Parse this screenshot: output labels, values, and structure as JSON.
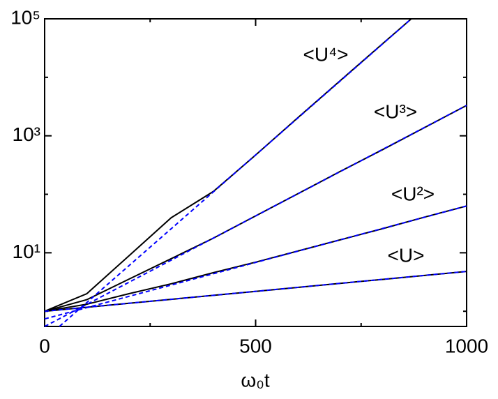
{
  "chart_data": {
    "type": "line",
    "yscale": "log",
    "xlabel": "ω₀t",
    "xlim": [
      0,
      1000
    ],
    "xticks": [
      0,
      500,
      1000
    ],
    "xticks_minor": [
      250,
      750
    ],
    "ylim": [
      0.55,
      100000
    ],
    "yticks": [
      {
        "value": 10,
        "label": "10¹"
      },
      {
        "value": 1000,
        "label": "10³"
      },
      {
        "value": 100000,
        "label": "10⁵"
      }
    ],
    "yticks_minor": [
      1,
      100,
      10000
    ],
    "series": [
      {
        "name": "<U⁴>",
        "color": "#000000",
        "x": [
          0,
          100,
          200,
          300,
          400,
          500,
          600,
          700,
          800,
          869
        ],
        "values": [
          1,
          2.0,
          8.9,
          39.8,
          112,
          468,
          2042,
          8710,
          37150,
          100000
        ]
      },
      {
        "name": "<U³>",
        "color": "#000000",
        "x": [
          0,
          100,
          200,
          300,
          400,
          500,
          600,
          700,
          800,
          900,
          1000
        ],
        "values": [
          1,
          1.58,
          3.55,
          7.94,
          17.8,
          42.7,
          102,
          245,
          575,
          1380,
          3310
        ]
      },
      {
        "name": "<U²>",
        "color": "#000000",
        "x": [
          0,
          100,
          200,
          300,
          400,
          500,
          600,
          700,
          800,
          900,
          1000
        ],
        "values": [
          1,
          1.32,
          2.0,
          2.95,
          4.57,
          6.92,
          10.7,
          16.6,
          25.7,
          40.7,
          63.1
        ]
      },
      {
        "name": "<U>",
        "color": "#000000",
        "x": [
          0,
          100,
          200,
          300,
          400,
          500,
          600,
          700,
          800,
          900,
          1000
        ],
        "values": [
          1,
          1.17,
          1.37,
          1.6,
          1.87,
          2.19,
          2.56,
          3.0,
          3.5,
          4.1,
          4.8
        ]
      }
    ],
    "fits": [
      {
        "color": "#0000ff",
        "x": [
          35,
          869
        ],
        "values": [
          0.55,
          100000
        ]
      },
      {
        "color": "#0000ff",
        "x": [
          0,
          1000
        ],
        "values": [
          0.55,
          3310
        ]
      },
      {
        "color": "#0000ff",
        "x": [
          0,
          1000
        ],
        "values": [
          0.74,
          63.1
        ]
      },
      {
        "color": "#0000ff",
        "x": [
          0,
          1000
        ],
        "values": [
          1,
          4.8
        ]
      }
    ]
  }
}
